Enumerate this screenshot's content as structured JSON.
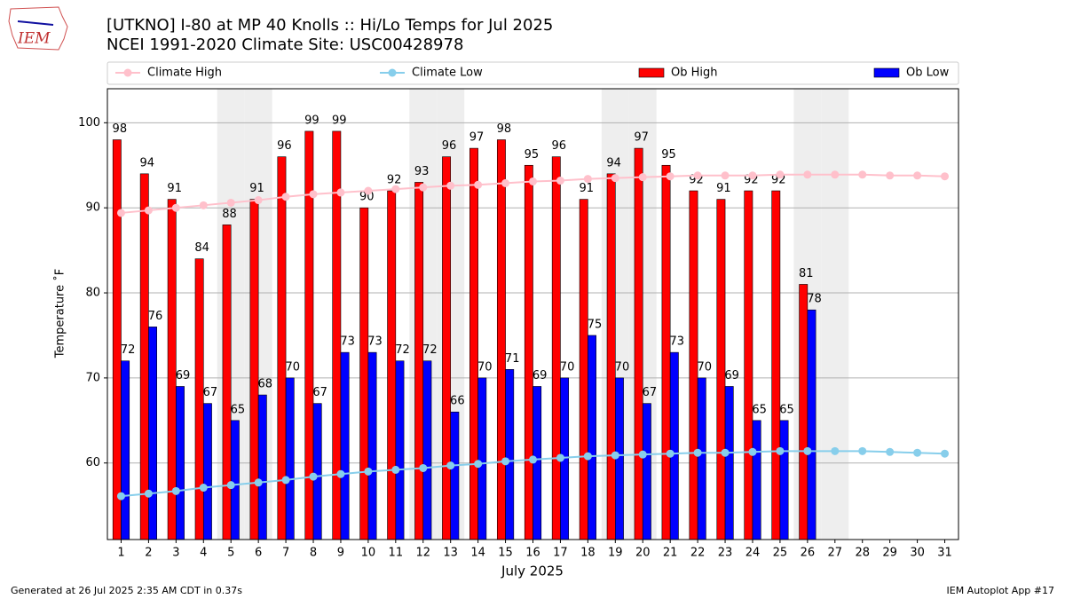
{
  "logo_text": "IEM",
  "footer_left": "Generated at 26 Jul 2025 2:35 AM CDT in 0.37s",
  "footer_right": "IEM Autoplot App #17",
  "chart_data": {
    "type": "bar",
    "title": "[UTKNO] I-80 at MP 40 Knolls  :: Hi/Lo Temps for Jul 2025",
    "subtitle": "NCEI 1991-2020 Climate Site: USC00428978",
    "x_label": "July 2025",
    "y_label": "Temperature ˚F",
    "categories": [
      1,
      2,
      3,
      4,
      5,
      6,
      7,
      8,
      9,
      10,
      11,
      12,
      13,
      14,
      15,
      16,
      17,
      18,
      19,
      20,
      21,
      22,
      23,
      24,
      25,
      26,
      27,
      28,
      29,
      30,
      31
    ],
    "ylim": [
      51,
      104
    ],
    "yticks": [
      60,
      70,
      80,
      90,
      100
    ],
    "grid": true,
    "legend": "top",
    "series": [
      {
        "name": "Climate High",
        "type": "line",
        "color": "#ffc0cb",
        "values": [
          89.4,
          89.7,
          90.0,
          90.3,
          90.6,
          90.9,
          91.3,
          91.6,
          91.8,
          92.0,
          92.2,
          92.4,
          92.6,
          92.7,
          92.9,
          93.1,
          93.2,
          93.4,
          93.5,
          93.6,
          93.7,
          93.8,
          93.8,
          93.8,
          93.9,
          93.9,
          93.9,
          93.9,
          93.8,
          93.8,
          93.7
        ]
      },
      {
        "name": "Climate Low",
        "type": "line",
        "color": "#87ceeb",
        "values": [
          56.1,
          56.4,
          56.7,
          57.1,
          57.4,
          57.7,
          58.0,
          58.4,
          58.7,
          59.0,
          59.2,
          59.4,
          59.7,
          59.9,
          60.2,
          60.4,
          60.6,
          60.8,
          60.9,
          61.0,
          61.1,
          61.2,
          61.2,
          61.3,
          61.4,
          61.4,
          61.4,
          61.4,
          61.3,
          61.2,
          61.1
        ]
      },
      {
        "name": "Ob High",
        "type": "bar",
        "color": "#ff0000",
        "values": [
          98,
          94,
          91,
          84,
          88,
          91,
          96,
          99,
          99,
          90,
          92,
          93,
          96,
          97,
          98,
          95,
          96,
          91,
          94,
          97,
          95,
          92,
          91,
          92,
          92,
          81,
          null,
          null,
          null,
          null,
          null
        ]
      },
      {
        "name": "Ob Low",
        "type": "bar",
        "color": "#0000ff",
        "values": [
          72,
          76,
          69,
          67,
          65,
          68,
          70,
          67,
          73,
          73,
          72,
          72,
          66,
          70,
          71,
          69,
          70,
          75,
          70,
          67,
          73,
          70,
          69,
          65,
          65,
          78,
          null,
          null,
          null,
          null,
          null
        ]
      }
    ]
  }
}
